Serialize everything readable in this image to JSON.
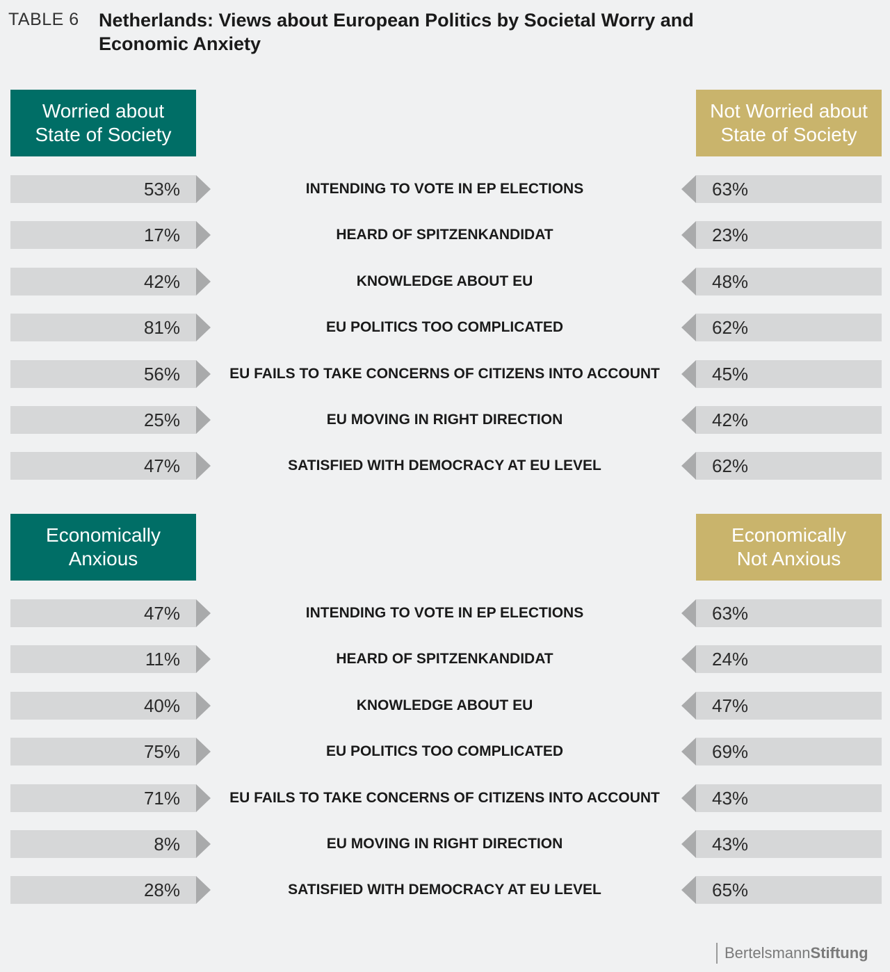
{
  "table_number": "TABLE 6",
  "title": "Netherlands: Views about European Politics by Societal Worry and Economic Anxiety",
  "colors": {
    "left_header": "#006e66",
    "right_header": "#c9b46c",
    "bar": "#d6d7d8",
    "arrow": "#a9aaab"
  },
  "chart_data": [
    {
      "type": "table",
      "left_group": "Worried about State of Society",
      "right_group": "Not Worried about State of Society",
      "rows": [
        {
          "label": "INTENDING TO VOTE IN EP ELECTIONS",
          "left": "53%",
          "right": "63%"
        },
        {
          "label": "HEARD OF SPITZENKANDIDAT",
          "left": "17%",
          "right": "23%"
        },
        {
          "label": "KNOWLEDGE ABOUT EU",
          "left": "42%",
          "right": "48%"
        },
        {
          "label": "EU POLITICS TOO COMPLICATED",
          "left": "81%",
          "right": "62%"
        },
        {
          "label": "EU FAILS TO TAKE CONCERNS OF CITIZENS INTO ACCOUNT",
          "left": "56%",
          "right": "45%"
        },
        {
          "label": "EU MOVING IN RIGHT DIRECTION",
          "left": "25%",
          "right": "42%"
        },
        {
          "label": "SATISFIED WITH DEMOCRACY AT EU LEVEL",
          "left": "47%",
          "right": "62%"
        }
      ]
    },
    {
      "type": "table",
      "left_group": "Economically Anxious",
      "right_group": "Economically Not Anxious",
      "rows": [
        {
          "label": "INTENDING TO VOTE IN EP ELECTIONS",
          "left": "47%",
          "right": "63%"
        },
        {
          "label": "HEARD OF SPITZENKANDIDAT",
          "left": "11%",
          "right": "24%"
        },
        {
          "label": "KNOWLEDGE ABOUT EU",
          "left": "40%",
          "right": "47%"
        },
        {
          "label": "EU POLITICS TOO COMPLICATED",
          "left": "75%",
          "right": "69%"
        },
        {
          "label": "EU FAILS TO TAKE CONCERNS OF CITIZENS INTO ACCOUNT",
          "left": "71%",
          "right": "43%"
        },
        {
          "label": "EU MOVING IN RIGHT DIRECTION",
          "left": "8%",
          "right": "43%"
        },
        {
          "label": "SATISFIED WITH DEMOCRACY AT EU LEVEL",
          "left": "28%",
          "right": "65%"
        }
      ]
    }
  ],
  "logo": {
    "part1": "Bertelsmann",
    "part2": "Stiftung"
  }
}
